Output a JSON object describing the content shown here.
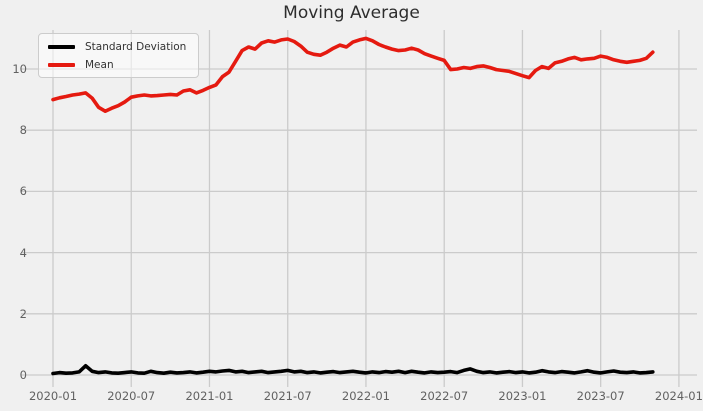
{
  "chart_data": {
    "type": "line",
    "title": "Moving Average",
    "xlabel": "",
    "ylabel": "",
    "grid": true,
    "background_color": "#f0f0f0",
    "grid_color": "#cbcbcb",
    "title_color": "#2d2d2d",
    "tick_color": "#616161",
    "x_start": "2020-01",
    "x_step_months": 0.5,
    "x_end_approx": "2023-11",
    "xticks": [
      "2020-01",
      "2020-07",
      "2021-01",
      "2021-07",
      "2022-01",
      "2022-07",
      "2023-01",
      "2023-07",
      "2024-01"
    ],
    "yticks": [
      0,
      2,
      4,
      6,
      8,
      10
    ],
    "ylim": [
      -0.35,
      11.3
    ],
    "xlim_months": [
      -2.45,
      49.4
    ],
    "legend": {
      "position": "upper-left",
      "entries": [
        {
          "label": "Standard Deviation",
          "color": "#000000"
        },
        {
          "label": "Mean",
          "color": "#e51a10"
        }
      ]
    },
    "series": [
      {
        "name": "Standard Deviation",
        "color": "#000000",
        "linewidth": 3.6,
        "values": [
          0.05,
          0.08,
          0.06,
          0.07,
          0.1,
          0.3,
          0.12,
          0.08,
          0.1,
          0.07,
          0.06,
          0.08,
          0.1,
          0.07,
          0.06,
          0.12,
          0.08,
          0.06,
          0.09,
          0.07,
          0.08,
          0.1,
          0.07,
          0.09,
          0.12,
          0.1,
          0.13,
          0.15,
          0.1,
          0.12,
          0.08,
          0.1,
          0.12,
          0.08,
          0.1,
          0.12,
          0.15,
          0.1,
          0.12,
          0.08,
          0.1,
          0.07,
          0.09,
          0.11,
          0.08,
          0.1,
          0.12,
          0.09,
          0.07,
          0.1,
          0.08,
          0.11,
          0.09,
          0.12,
          0.08,
          0.12,
          0.09,
          0.07,
          0.1,
          0.08,
          0.09,
          0.11,
          0.08,
          0.15,
          0.2,
          0.12,
          0.08,
          0.1,
          0.07,
          0.09,
          0.11,
          0.08,
          0.1,
          0.07,
          0.09,
          0.14,
          0.1,
          0.08,
          0.11,
          0.09,
          0.07,
          0.1,
          0.14,
          0.09,
          0.07,
          0.1,
          0.13,
          0.09,
          0.08,
          0.1,
          0.07,
          0.08,
          0.1
        ]
      },
      {
        "name": "Mean",
        "color": "#e51a10",
        "linewidth": 3.6,
        "values": [
          9.0,
          9.06,
          9.1,
          9.15,
          9.18,
          9.22,
          9.05,
          8.75,
          8.62,
          8.72,
          8.8,
          8.92,
          9.08,
          9.12,
          9.15,
          9.12,
          9.13,
          9.15,
          9.17,
          9.15,
          9.28,
          9.32,
          9.22,
          9.3,
          9.4,
          9.48,
          9.75,
          9.9,
          10.25,
          10.6,
          10.72,
          10.65,
          10.85,
          10.92,
          10.88,
          10.95,
          10.98,
          10.9,
          10.75,
          10.55,
          10.48,
          10.45,
          10.55,
          10.68,
          10.78,
          10.72,
          10.88,
          10.95,
          11.0,
          10.92,
          10.8,
          10.72,
          10.65,
          10.6,
          10.62,
          10.68,
          10.62,
          10.5,
          10.42,
          10.35,
          10.28,
          9.98,
          10.0,
          10.05,
          10.02,
          10.08,
          10.1,
          10.05,
          9.98,
          9.95,
          9.92,
          9.85,
          9.78,
          9.72,
          9.95,
          10.08,
          10.02,
          10.2,
          10.25,
          10.33,
          10.38,
          10.3,
          10.33,
          10.35,
          10.42,
          10.38,
          10.3,
          10.25,
          10.22,
          10.25,
          10.28,
          10.35,
          10.55
        ]
      }
    ]
  }
}
